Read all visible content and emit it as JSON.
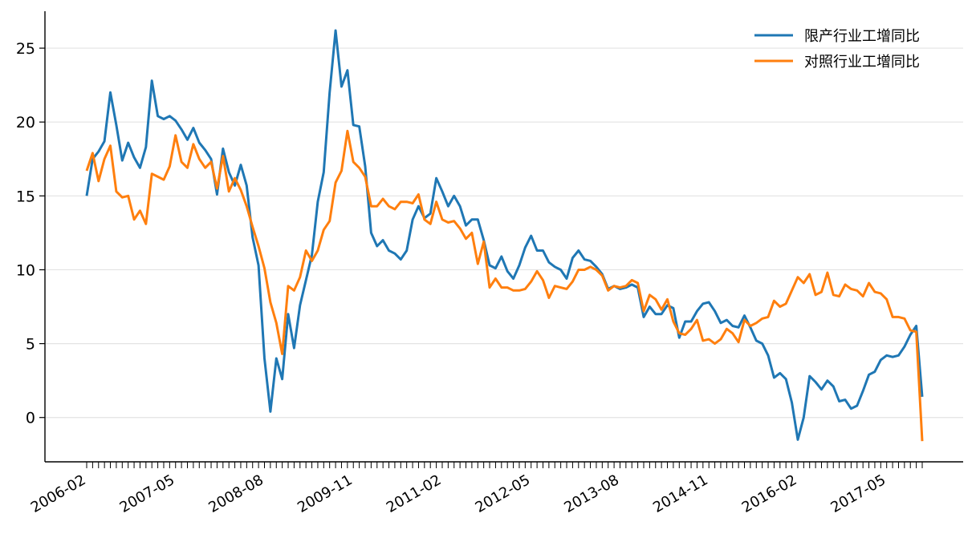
{
  "chart_data": {
    "type": "line",
    "title": "",
    "xlabel": "",
    "ylabel": "",
    "x_tick_labels": [
      "2006-02",
      "2007-05",
      "2008-08",
      "2009-11",
      "2011-02",
      "2012-05",
      "2013-08",
      "2014-11",
      "2016-02",
      "2017-05"
    ],
    "x_start": "2006-02",
    "x_end": "2018-02",
    "ylim": [
      -3,
      27.5
    ],
    "yticks": [
      0,
      5,
      10,
      15,
      20,
      25
    ],
    "grid": "horizontal",
    "legend_position": "top-right",
    "series": [
      {
        "name": "限产行业工增同比",
        "color": "#1f77b4",
        "values": [
          15.0,
          17.5,
          18.0,
          18.7,
          22.0,
          19.8,
          17.4,
          18.6,
          17.6,
          16.9,
          18.3,
          22.8,
          20.4,
          20.2,
          20.4,
          20.1,
          19.5,
          18.8,
          19.6,
          18.6,
          18.1,
          17.5,
          15.1,
          18.2,
          16.6,
          15.7,
          17.1,
          15.7,
          12.2,
          10.3,
          4.0,
          0.4,
          4.0,
          2.6,
          7.0,
          4.7,
          7.6,
          9.3,
          11.0,
          14.6,
          16.6,
          22.0,
          26.2,
          22.4,
          23.5,
          19.8,
          19.7,
          17.0,
          12.5,
          11.6,
          12.0,
          11.3,
          11.1,
          10.7,
          11.3,
          13.4,
          14.3,
          13.5,
          13.8,
          16.2,
          15.3,
          14.3,
          15.0,
          14.3,
          13.0,
          13.4,
          13.4,
          12.0,
          10.3,
          10.1,
          10.9,
          9.9,
          9.4,
          10.3,
          11.5,
          12.3,
          11.3,
          11.3,
          10.5,
          10.2,
          10.0,
          9.4,
          10.8,
          11.3,
          10.7,
          10.6,
          10.2,
          9.7,
          8.7,
          8.9,
          8.7,
          8.8,
          9.0,
          8.8,
          6.8,
          7.5,
          7.0,
          7.0,
          7.6,
          7.4,
          5.4,
          6.5,
          6.5,
          7.2,
          7.7,
          7.8,
          7.2,
          6.4,
          6.6,
          6.2,
          6.1,
          6.9,
          6.1,
          5.2,
          5.0,
          4.2,
          2.7,
          3.0,
          2.6,
          1.0,
          -1.5,
          0.0,
          2.8,
          2.4,
          1.9,
          2.5,
          2.1,
          1.1,
          1.2,
          0.6,
          0.8,
          1.8,
          2.9,
          3.1,
          3.9,
          4.2,
          4.1,
          4.2,
          4.8,
          5.6,
          6.2,
          1.4
        ]
      },
      {
        "name": "对照行业工增同比",
        "color": "#ff7f0e",
        "values": [
          16.7,
          17.9,
          16.0,
          17.5,
          18.4,
          15.3,
          14.9,
          15.0,
          13.4,
          14.0,
          13.1,
          16.5,
          16.3,
          16.1,
          17.0,
          19.1,
          17.3,
          16.9,
          18.5,
          17.5,
          16.9,
          17.3,
          15.5,
          17.7,
          15.3,
          16.2,
          15.4,
          14.3,
          12.9,
          11.6,
          10.1,
          7.8,
          6.4,
          4.3,
          8.9,
          8.6,
          9.5,
          11.3,
          10.6,
          11.3,
          12.7,
          13.3,
          15.9,
          16.7,
          19.4,
          17.3,
          16.9,
          16.3,
          14.3,
          14.3,
          14.8,
          14.3,
          14.1,
          14.6,
          14.6,
          14.5,
          15.1,
          13.4,
          13.1,
          14.6,
          13.4,
          13.2,
          13.3,
          12.8,
          12.1,
          12.5,
          10.4,
          11.9,
          8.8,
          9.4,
          8.8,
          8.8,
          8.6,
          8.6,
          8.7,
          9.2,
          9.9,
          9.3,
          8.1,
          8.9,
          8.8,
          8.7,
          9.2,
          10.0,
          10.0,
          10.2,
          10.0,
          9.6,
          8.6,
          8.9,
          8.8,
          8.9,
          9.3,
          9.1,
          7.2,
          8.3,
          8.0,
          7.3,
          8.0,
          6.5,
          5.7,
          5.6,
          6.0,
          6.6,
          5.2,
          5.3,
          5.0,
          5.3,
          6.0,
          5.7,
          5.1,
          6.6,
          6.2,
          6.4,
          6.7,
          6.8,
          7.9,
          7.5,
          7.7,
          8.6,
          9.5,
          9.1,
          9.7,
          8.3,
          8.5,
          9.8,
          8.3,
          8.2,
          9.0,
          8.7,
          8.6,
          8.2,
          9.1,
          8.5,
          8.4,
          8.0,
          6.8,
          6.8,
          6.7,
          5.9,
          5.8,
          -1.6
        ]
      }
    ]
  }
}
